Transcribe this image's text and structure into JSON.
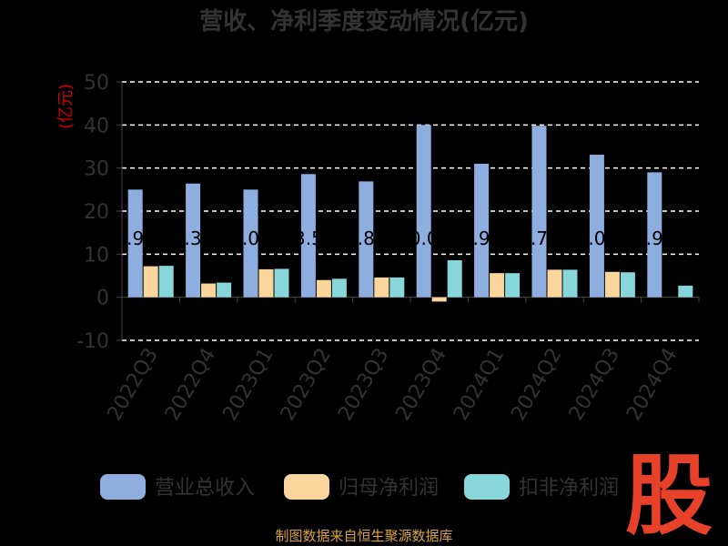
{
  "title": "营收、净利季度变动情况(亿元)",
  "source": "制图数据来自恒生聚源数据库",
  "watermark": "股",
  "colors": {
    "background": "#000000",
    "grid": "#ffffff",
    "axis": "#444444",
    "text": "#333333",
    "unit": "#cc0000",
    "source": "#d9a441",
    "watermark": "#e8412a"
  },
  "chart_data": {
    "type": "bar",
    "title": "营收、净利季度变动情况(亿元)",
    "ylabel": "(亿元)",
    "ylim": [
      -10,
      50
    ],
    "yticks": [
      -10,
      0,
      10,
      20,
      30,
      40,
      50
    ],
    "grid": true,
    "legend_position": "bottom",
    "categories": [
      "2022Q3",
      "2022Q4",
      "2023Q1",
      "2023Q2",
      "2023Q3",
      "2023Q4",
      "2024Q1",
      "2024Q2",
      "2024Q3",
      "2024Q4"
    ],
    "series": [
      {
        "name": "营业总收入",
        "color": "#8eaee0",
        "values": [
          25.0,
          26.4,
          25.0,
          28.6,
          26.9,
          40.0,
          31.0,
          39.8,
          33.1,
          29.0
        ],
        "labels": [
          ".9",
          ".3",
          ".0",
          "3.5",
          ".8",
          "0.0",
          ".9",
          ".7",
          ".0",
          ".9"
        ]
      },
      {
        "name": "归母净利润",
        "color": "#fbd69c",
        "values": [
          7.2,
          3.2,
          6.5,
          4.0,
          4.6,
          -1.0,
          5.6,
          6.4,
          5.9,
          0
        ],
        "labels": []
      },
      {
        "name": "扣非净利润",
        "color": "#87d6d9",
        "values": [
          7.3,
          3.4,
          6.6,
          4.3,
          4.6,
          8.6,
          5.6,
          6.4,
          5.8,
          2.7
        ],
        "labels": []
      }
    ]
  }
}
